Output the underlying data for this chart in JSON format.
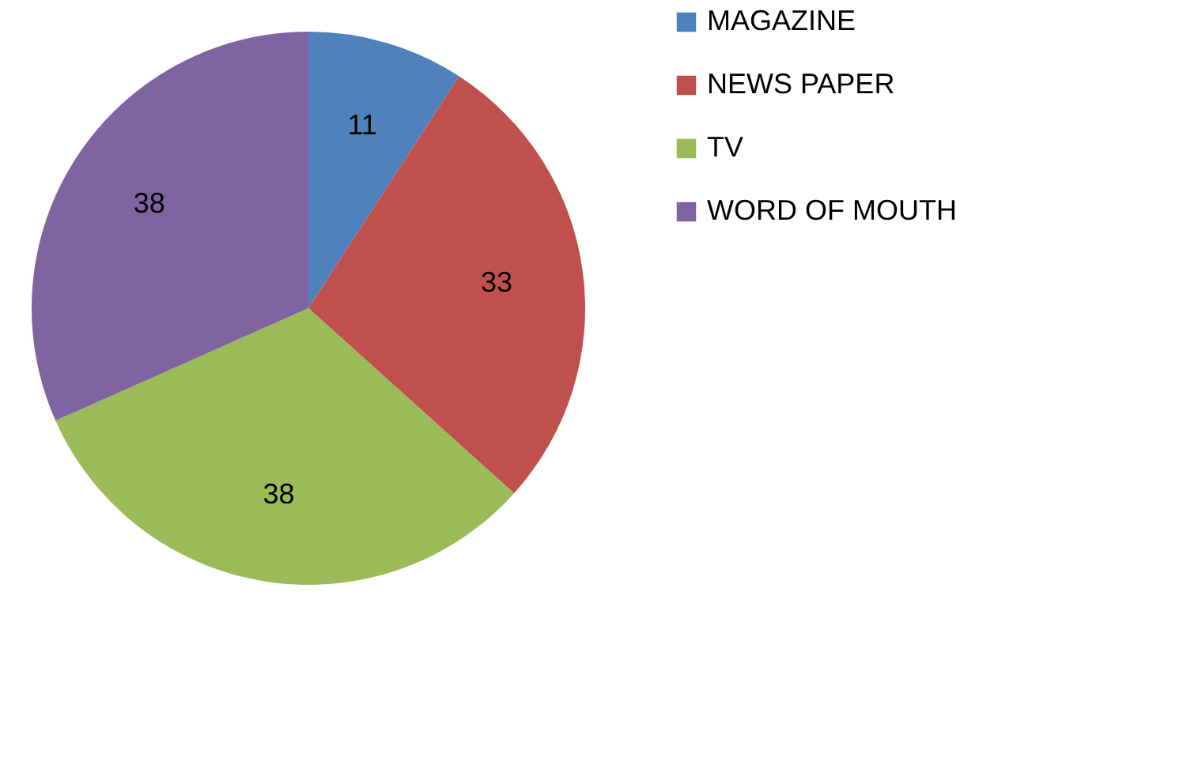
{
  "chart_data": {
    "type": "pie",
    "categories": [
      "MAGAZINE",
      "NEWS PAPER",
      "TV",
      "WORD OF MOUTH"
    ],
    "values": [
      11,
      33,
      38,
      38
    ],
    "colors": [
      "#4f81bd",
      "#c0504d",
      "#9bbb59",
      "#8064a2"
    ],
    "data_labels": true,
    "legend": "right"
  }
}
